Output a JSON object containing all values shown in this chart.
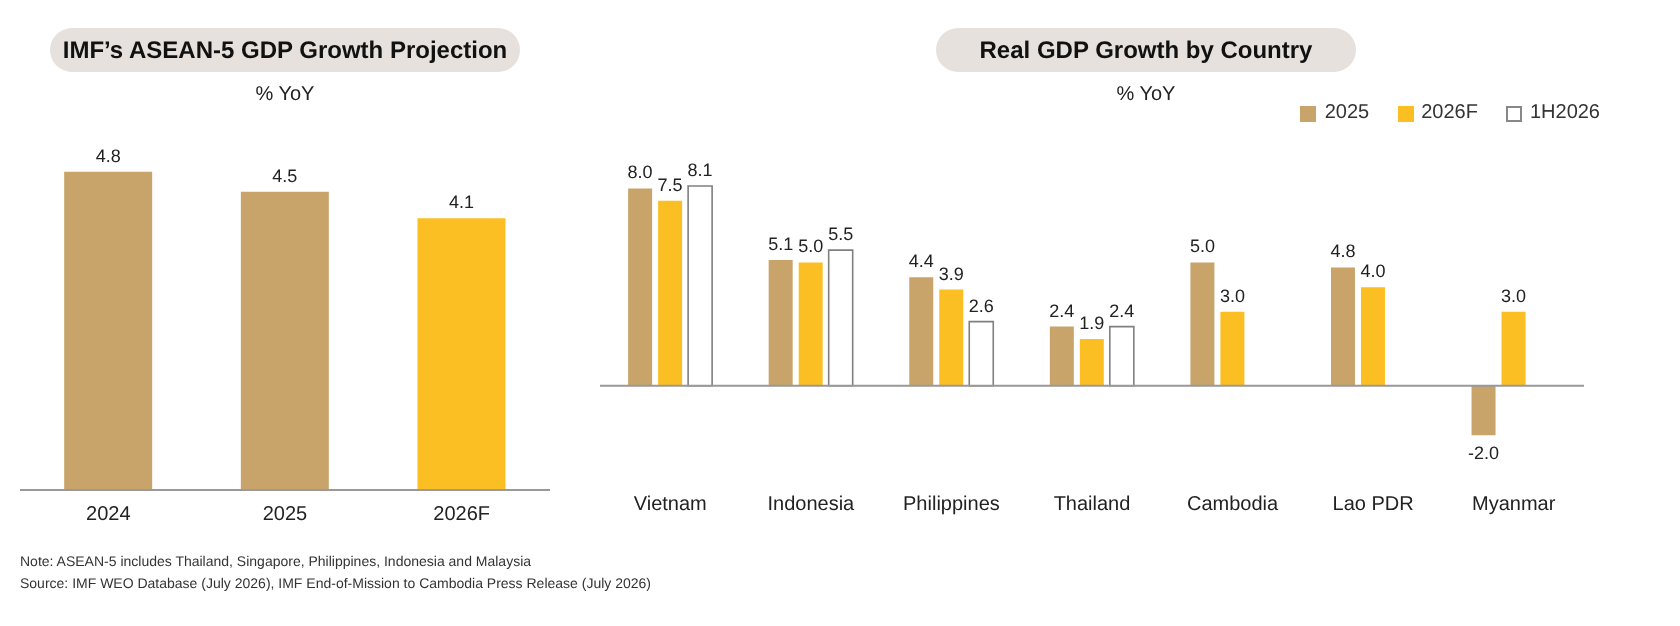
{
  "chart_data": [
    {
      "type": "bar",
      "title": "IMF’s ASEAN-5 GDP Growth Projection",
      "subtitle": "% YoY",
      "categories": [
        "2024",
        "2025",
        "2026F"
      ],
      "values": [
        4.8,
        4.5,
        4.1
      ],
      "value_labels": [
        "4.8",
        "4.5",
        "4.1"
      ],
      "colors": [
        "#c9a46a",
        "#c9a46a",
        "#fcbf23"
      ],
      "legend": false,
      "annotations": [
        "Note: ASEAN-5 includes Thailand, Singapore, Philippines, Indonesia and Malaysia",
        "Source: IMF WEO Database (July 2026), IMF End-of-Mission to Cambodia Press Release (July 2026)"
      ]
    },
    {
      "type": "bar",
      "title": "Real GDP Growth by Country",
      "subtitle": "% YoY",
      "categories": [
        "Vietnam",
        "Indonesia",
        "Philippines",
        "Thailand",
        "Cambodia",
        "Lao PDR",
        "Myanmar"
      ],
      "series": [
        {
          "name": "2025",
          "color": "#c9a46a",
          "values": [
            8.0,
            5.1,
            4.4,
            2.4,
            5.0,
            4.8,
            -2.0
          ],
          "value_labels": [
            "8.0",
            "5.1",
            "4.4",
            "2.4",
            "5.0",
            "4.8",
            "-2.0"
          ]
        },
        {
          "name": "2026F",
          "color": "#fcbf23",
          "values": [
            7.5,
            5.0,
            3.9,
            1.9,
            3.0,
            4.0,
            3.0
          ],
          "value_labels": [
            "7.5",
            "5.0",
            "3.9",
            "1.9",
            "3.0",
            "4.0",
            "3.0"
          ]
        },
        {
          "name": "1H2026",
          "color": "#ffffff",
          "values": [
            8.1,
            5.5,
            2.6,
            2.4,
            null,
            null,
            null
          ],
          "value_labels": [
            "8.1",
            "5.5",
            "2.6",
            "2.4",
            null,
            null,
            null
          ]
        }
      ],
      "legend": "top right"
    }
  ]
}
